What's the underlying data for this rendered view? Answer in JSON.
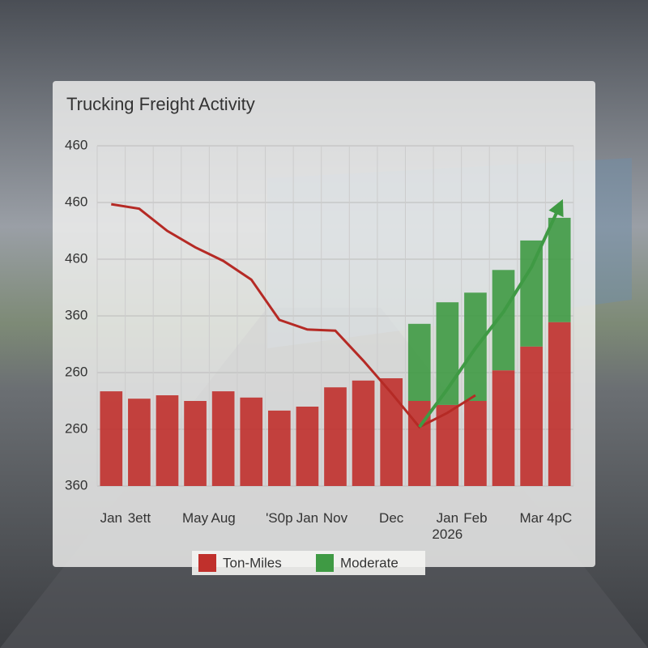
{
  "chart_data": {
    "type": "bar",
    "title": "Trucking Freight Activity",
    "categories": [
      "Jan",
      "3ett",
      null,
      "May",
      "Aug",
      null,
      "'S0p",
      "Jan",
      "Nov",
      null,
      "Dec",
      null,
      "Jan 2026",
      "Feb",
      null,
      "Mar",
      "4pC"
    ],
    "series": [
      {
        "name": "Ton-Miles",
        "color": "#c0302c",
        "values": [
          1.67,
          1.54,
          1.6,
          1.5,
          1.67,
          1.56,
          1.33,
          1.4,
          1.74,
          1.86,
          1.9,
          1.5,
          1.43,
          1.5,
          2.04,
          2.46,
          2.89
        ]
      },
      {
        "name": "Moderate",
        "color": "#3f9a44",
        "values": [
          null,
          null,
          null,
          null,
          null,
          null,
          null,
          null,
          null,
          null,
          null,
          1.36,
          1.81,
          1.91,
          1.77,
          1.87,
          1.84
        ]
      }
    ],
    "lines": [
      {
        "color": "#b52a25",
        "values": [
          4.97,
          4.89,
          4.5,
          4.21,
          3.97,
          3.64,
          2.93,
          2.76,
          2.74,
          2.21,
          1.64,
          1.04,
          1.29,
          1.6,
          null,
          null,
          null
        ]
      },
      {
        "color": "#3f9a44",
        "values": [
          null,
          null,
          null,
          null,
          null,
          null,
          null,
          null,
          null,
          null,
          null,
          1.04,
          1.71,
          2.43,
          3.07,
          3.86,
          4.93
        ]
      }
    ],
    "ylim": [
      0,
      6
    ],
    "yticks": [
      {
        "value": 0,
        "label": "360"
      },
      {
        "value": 1,
        "label": "260"
      },
      {
        "value": 2,
        "label": "260"
      },
      {
        "value": 3,
        "label": "360"
      },
      {
        "value": 4,
        "label": "460"
      },
      {
        "value": 5,
        "label": "460"
      },
      {
        "value": 6,
        "label": "460"
      }
    ],
    "grid": true,
    "legend": "bottom"
  }
}
